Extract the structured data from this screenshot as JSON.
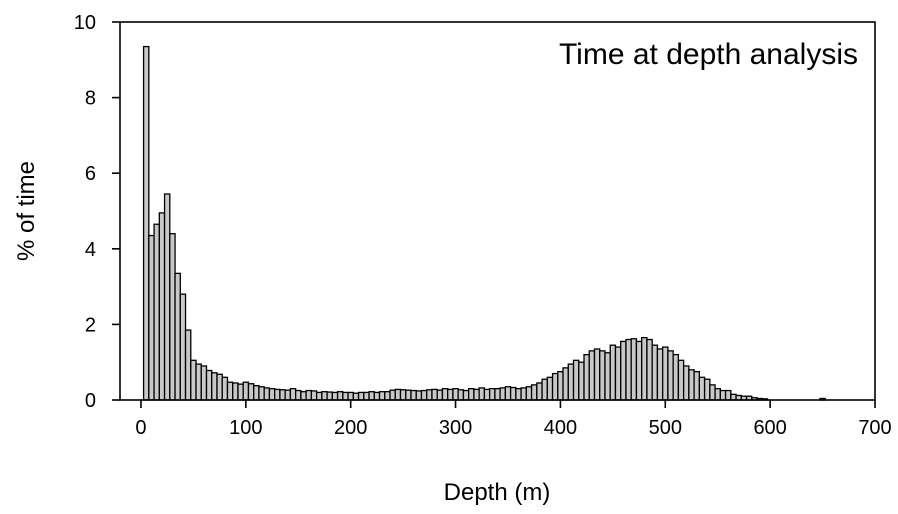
{
  "chart_data": {
    "type": "bar",
    "title": "Time at depth analysis",
    "xlabel": "Depth (m)",
    "ylabel": "% of time",
    "xlim": [
      -20,
      700
    ],
    "ylim": [
      0,
      10
    ],
    "xticks": [
      "0",
      "100",
      "200",
      "300",
      "400",
      "500",
      "600",
      "700"
    ],
    "yticks": [
      "0",
      "2",
      "4",
      "6",
      "8",
      "10"
    ],
    "bin_width": 5,
    "grid": false,
    "legend": "none",
    "bar_color": "#c8c8c8",
    "bar_edge_color": "#000000",
    "bins": [
      {
        "x": 5,
        "y": 9.35
      },
      {
        "x": 10,
        "y": 4.35
      },
      {
        "x": 15,
        "y": 4.65
      },
      {
        "x": 20,
        "y": 4.95
      },
      {
        "x": 25,
        "y": 5.45
      },
      {
        "x": 30,
        "y": 4.4
      },
      {
        "x": 35,
        "y": 3.35
      },
      {
        "x": 40,
        "y": 2.8
      },
      {
        "x": 45,
        "y": 1.85
      },
      {
        "x": 50,
        "y": 1.05
      },
      {
        "x": 55,
        "y": 0.95
      },
      {
        "x": 60,
        "y": 0.9
      },
      {
        "x": 65,
        "y": 0.78
      },
      {
        "x": 70,
        "y": 0.72
      },
      {
        "x": 75,
        "y": 0.68
      },
      {
        "x": 80,
        "y": 0.6
      },
      {
        "x": 85,
        "y": 0.47
      },
      {
        "x": 90,
        "y": 0.45
      },
      {
        "x": 95,
        "y": 0.42
      },
      {
        "x": 100,
        "y": 0.47
      },
      {
        "x": 105,
        "y": 0.43
      },
      {
        "x": 110,
        "y": 0.38
      },
      {
        "x": 115,
        "y": 0.35
      },
      {
        "x": 120,
        "y": 0.32
      },
      {
        "x": 125,
        "y": 0.3
      },
      {
        "x": 130,
        "y": 0.28
      },
      {
        "x": 135,
        "y": 0.27
      },
      {
        "x": 140,
        "y": 0.26
      },
      {
        "x": 145,
        "y": 0.3
      },
      {
        "x": 150,
        "y": 0.25
      },
      {
        "x": 155,
        "y": 0.22
      },
      {
        "x": 160,
        "y": 0.25
      },
      {
        "x": 165,
        "y": 0.24
      },
      {
        "x": 170,
        "y": 0.2
      },
      {
        "x": 175,
        "y": 0.22
      },
      {
        "x": 180,
        "y": 0.21
      },
      {
        "x": 185,
        "y": 0.2
      },
      {
        "x": 190,
        "y": 0.22
      },
      {
        "x": 195,
        "y": 0.2
      },
      {
        "x": 200,
        "y": 0.2
      },
      {
        "x": 205,
        "y": 0.18
      },
      {
        "x": 210,
        "y": 0.2
      },
      {
        "x": 215,
        "y": 0.2
      },
      {
        "x": 220,
        "y": 0.22
      },
      {
        "x": 225,
        "y": 0.2
      },
      {
        "x": 230,
        "y": 0.22
      },
      {
        "x": 235,
        "y": 0.22
      },
      {
        "x": 240,
        "y": 0.26
      },
      {
        "x": 245,
        "y": 0.28
      },
      {
        "x": 250,
        "y": 0.27
      },
      {
        "x": 255,
        "y": 0.26
      },
      {
        "x": 260,
        "y": 0.25
      },
      {
        "x": 265,
        "y": 0.24
      },
      {
        "x": 270,
        "y": 0.25
      },
      {
        "x": 275,
        "y": 0.27
      },
      {
        "x": 280,
        "y": 0.28
      },
      {
        "x": 285,
        "y": 0.26
      },
      {
        "x": 290,
        "y": 0.3
      },
      {
        "x": 295,
        "y": 0.28
      },
      {
        "x": 300,
        "y": 0.3
      },
      {
        "x": 305,
        "y": 0.27
      },
      {
        "x": 310,
        "y": 0.25
      },
      {
        "x": 315,
        "y": 0.3
      },
      {
        "x": 320,
        "y": 0.28
      },
      {
        "x": 325,
        "y": 0.32
      },
      {
        "x": 330,
        "y": 0.28
      },
      {
        "x": 335,
        "y": 0.3
      },
      {
        "x": 340,
        "y": 0.3
      },
      {
        "x": 345,
        "y": 0.32
      },
      {
        "x": 350,
        "y": 0.35
      },
      {
        "x": 355,
        "y": 0.33
      },
      {
        "x": 360,
        "y": 0.3
      },
      {
        "x": 365,
        "y": 0.32
      },
      {
        "x": 370,
        "y": 0.35
      },
      {
        "x": 375,
        "y": 0.4
      },
      {
        "x": 380,
        "y": 0.45
      },
      {
        "x": 385,
        "y": 0.55
      },
      {
        "x": 390,
        "y": 0.6
      },
      {
        "x": 395,
        "y": 0.7
      },
      {
        "x": 400,
        "y": 0.75
      },
      {
        "x": 405,
        "y": 0.85
      },
      {
        "x": 410,
        "y": 0.95
      },
      {
        "x": 415,
        "y": 1.05
      },
      {
        "x": 420,
        "y": 1.0
      },
      {
        "x": 425,
        "y": 1.2
      },
      {
        "x": 430,
        "y": 1.3
      },
      {
        "x": 435,
        "y": 1.35
      },
      {
        "x": 440,
        "y": 1.3
      },
      {
        "x": 445,
        "y": 1.25
      },
      {
        "x": 450,
        "y": 1.45
      },
      {
        "x": 455,
        "y": 1.4
      },
      {
        "x": 460,
        "y": 1.55
      },
      {
        "x": 465,
        "y": 1.6
      },
      {
        "x": 470,
        "y": 1.62
      },
      {
        "x": 475,
        "y": 1.55
      },
      {
        "x": 480,
        "y": 1.65
      },
      {
        "x": 485,
        "y": 1.6
      },
      {
        "x": 490,
        "y": 1.45
      },
      {
        "x": 495,
        "y": 1.35
      },
      {
        "x": 500,
        "y": 1.4
      },
      {
        "x": 505,
        "y": 1.3
      },
      {
        "x": 510,
        "y": 1.2
      },
      {
        "x": 515,
        "y": 1.05
      },
      {
        "x": 520,
        "y": 0.9
      },
      {
        "x": 525,
        "y": 0.8
      },
      {
        "x": 530,
        "y": 0.75
      },
      {
        "x": 535,
        "y": 0.6
      },
      {
        "x": 540,
        "y": 0.55
      },
      {
        "x": 545,
        "y": 0.4
      },
      {
        "x": 550,
        "y": 0.3
      },
      {
        "x": 555,
        "y": 0.25
      },
      {
        "x": 560,
        "y": 0.25
      },
      {
        "x": 565,
        "y": 0.15
      },
      {
        "x": 570,
        "y": 0.12
      },
      {
        "x": 575,
        "y": 0.1
      },
      {
        "x": 580,
        "y": 0.1
      },
      {
        "x": 585,
        "y": 0.06
      },
      {
        "x": 590,
        "y": 0.04
      },
      {
        "x": 595,
        "y": 0.03
      },
      {
        "x": 650,
        "y": 0.04
      }
    ]
  }
}
